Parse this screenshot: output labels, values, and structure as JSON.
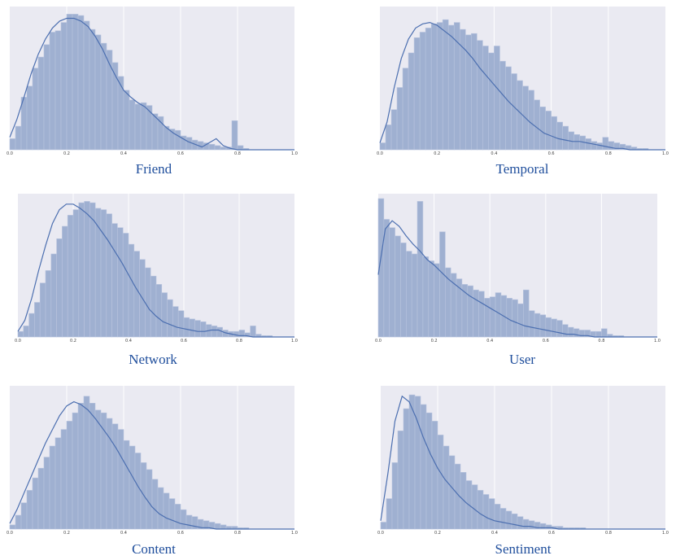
{
  "colors": {
    "plot_bg": "#eaeaf2",
    "grid": "#ffffff",
    "bar_fill": "#9fb0d1",
    "bar_edge": "#b8c4de",
    "kde_line": "#4c6fb0",
    "title": "#1f4e9c"
  },
  "chart_data": [
    {
      "type": "bar",
      "title": "Friend",
      "xlabel": "",
      "ylabel": "",
      "xlim": [
        0.0,
        1.0
      ],
      "x_ticks": [
        "0.0",
        "0.2",
        "0.4",
        "0.6",
        "0.8",
        "1.0"
      ],
      "grid": true,
      "bin_width": 0.02,
      "bin_start": 0.0,
      "values": [
        0.08,
        0.17,
        0.38,
        0.46,
        0.59,
        0.67,
        0.76,
        0.85,
        0.86,
        0.92,
        0.98,
        0.98,
        0.97,
        0.93,
        0.87,
        0.83,
        0.77,
        0.72,
        0.63,
        0.53,
        0.43,
        0.36,
        0.33,
        0.34,
        0.32,
        0.26,
        0.24,
        0.17,
        0.15,
        0.14,
        0.1,
        0.09,
        0.07,
        0.06,
        0.05,
        0.04,
        0.03,
        0.02,
        0.02,
        0.21,
        0.03,
        0.01,
        0.0,
        0.0,
        0.0,
        0.0,
        0.0,
        0.0,
        0.0,
        0.0
      ],
      "kde": [
        0.09,
        0.22,
        0.38,
        0.55,
        0.69,
        0.8,
        0.88,
        0.93,
        0.95,
        0.95,
        0.93,
        0.89,
        0.82,
        0.73,
        0.62,
        0.52,
        0.43,
        0.38,
        0.34,
        0.31,
        0.26,
        0.21,
        0.16,
        0.12,
        0.09,
        0.06,
        0.04,
        0.02,
        0.05,
        0.08,
        0.03,
        0.01,
        0.0,
        0.0,
        0.0,
        0.0,
        0.0,
        0.0,
        0.0,
        0.0,
        0.0
      ],
      "kde_x_step": 0.025
    },
    {
      "type": "bar",
      "title": "Temporal",
      "xlabel": "",
      "ylabel": "",
      "xlim": [
        0.0,
        1.0
      ],
      "x_ticks": [
        "0.0",
        "0.2",
        "0.4",
        "0.6",
        "0.8",
        "1.0"
      ],
      "grid": true,
      "bin_width": 0.02,
      "bin_start": 0.0,
      "values": [
        0.05,
        0.18,
        0.29,
        0.45,
        0.59,
        0.7,
        0.81,
        0.85,
        0.88,
        0.91,
        0.92,
        0.94,
        0.9,
        0.92,
        0.87,
        0.83,
        0.84,
        0.79,
        0.75,
        0.7,
        0.75,
        0.64,
        0.6,
        0.55,
        0.5,
        0.46,
        0.43,
        0.36,
        0.31,
        0.28,
        0.24,
        0.2,
        0.17,
        0.13,
        0.11,
        0.1,
        0.08,
        0.06,
        0.05,
        0.09,
        0.06,
        0.05,
        0.04,
        0.03,
        0.02,
        0.01,
        0.01,
        0.0,
        0.0,
        0.0
      ],
      "kde": [
        0.05,
        0.2,
        0.45,
        0.66,
        0.8,
        0.88,
        0.91,
        0.92,
        0.9,
        0.86,
        0.82,
        0.77,
        0.72,
        0.66,
        0.59,
        0.53,
        0.47,
        0.41,
        0.35,
        0.3,
        0.25,
        0.2,
        0.16,
        0.12,
        0.1,
        0.08,
        0.07,
        0.06,
        0.06,
        0.05,
        0.04,
        0.03,
        0.02,
        0.01,
        0.01,
        0.0,
        0.0,
        0.0,
        0.0,
        0.0,
        0.0
      ],
      "kde_x_step": 0.025
    },
    {
      "type": "bar",
      "title": "Network",
      "xlabel": "",
      "ylabel": "",
      "xlim": [
        0.0,
        1.0
      ],
      "x_ticks": [
        "0.0",
        "0.2",
        "0.4",
        "0.6",
        "0.8",
        "1.0"
      ],
      "grid": true,
      "bin_width": 0.02,
      "bin_start": 0.0,
      "values": [
        0.04,
        0.08,
        0.17,
        0.25,
        0.39,
        0.48,
        0.6,
        0.71,
        0.8,
        0.88,
        0.92,
        0.97,
        0.98,
        0.97,
        0.93,
        0.92,
        0.89,
        0.82,
        0.79,
        0.75,
        0.67,
        0.62,
        0.56,
        0.5,
        0.44,
        0.38,
        0.32,
        0.27,
        0.22,
        0.19,
        0.14,
        0.13,
        0.12,
        0.11,
        0.09,
        0.08,
        0.07,
        0.05,
        0.04,
        0.04,
        0.05,
        0.03,
        0.08,
        0.02,
        0.01,
        0.01,
        0.0,
        0.0,
        0.0,
        0.0
      ],
      "kde": [
        0.04,
        0.12,
        0.28,
        0.48,
        0.66,
        0.82,
        0.92,
        0.96,
        0.96,
        0.93,
        0.89,
        0.84,
        0.77,
        0.7,
        0.62,
        0.54,
        0.45,
        0.36,
        0.28,
        0.2,
        0.15,
        0.11,
        0.09,
        0.07,
        0.06,
        0.05,
        0.04,
        0.04,
        0.05,
        0.05,
        0.03,
        0.02,
        0.01,
        0.01,
        0.0,
        0.0,
        0.0,
        0.0,
        0.0,
        0.0,
        0.0
      ],
      "kde_x_step": 0.025
    },
    {
      "type": "bar",
      "title": "User",
      "xlabel": "",
      "ylabel": "",
      "xlim": [
        0.0,
        1.0
      ],
      "x_ticks": [
        "0.0",
        "0.2",
        "0.4",
        "0.6",
        "0.8",
        "1.0"
      ],
      "grid": true,
      "bin_width": 0.02,
      "bin_start": 0.0,
      "values": [
        1.0,
        0.85,
        0.79,
        0.73,
        0.68,
        0.62,
        0.6,
        0.98,
        0.58,
        0.55,
        0.53,
        0.76,
        0.5,
        0.46,
        0.42,
        0.38,
        0.37,
        0.34,
        0.33,
        0.28,
        0.29,
        0.32,
        0.3,
        0.28,
        0.27,
        0.24,
        0.34,
        0.19,
        0.17,
        0.16,
        0.14,
        0.13,
        0.12,
        0.09,
        0.07,
        0.06,
        0.05,
        0.05,
        0.04,
        0.04,
        0.06,
        0.02,
        0.01,
        0.01,
        0.0,
        0.0,
        0.0,
        0.0,
        0.0,
        0.0
      ],
      "kde": [
        0.45,
        0.78,
        0.84,
        0.8,
        0.73,
        0.67,
        0.62,
        0.56,
        0.52,
        0.47,
        0.42,
        0.38,
        0.34,
        0.3,
        0.27,
        0.24,
        0.21,
        0.18,
        0.15,
        0.12,
        0.1,
        0.08,
        0.07,
        0.06,
        0.05,
        0.04,
        0.03,
        0.02,
        0.02,
        0.01,
        0.01,
        0.0,
        0.0,
        0.0,
        0.0,
        0.0,
        0.0,
        0.0,
        0.0,
        0.0,
        0.0
      ],
      "kde_x_step": 0.025
    },
    {
      "type": "bar",
      "title": "Content",
      "xlabel": "",
      "ylabel": "",
      "xlim": [
        0.0,
        1.0
      ],
      "x_ticks": [
        "0.0",
        "0.2",
        "0.4",
        "0.6",
        "0.8",
        "1.0"
      ],
      "grid": true,
      "bin_width": 0.02,
      "bin_start": 0.0,
      "values": [
        0.03,
        0.1,
        0.19,
        0.28,
        0.37,
        0.44,
        0.52,
        0.6,
        0.66,
        0.72,
        0.78,
        0.84,
        0.91,
        0.96,
        0.91,
        0.86,
        0.84,
        0.8,
        0.76,
        0.72,
        0.64,
        0.6,
        0.55,
        0.48,
        0.43,
        0.36,
        0.3,
        0.26,
        0.22,
        0.18,
        0.14,
        0.1,
        0.09,
        0.07,
        0.06,
        0.05,
        0.04,
        0.03,
        0.02,
        0.02,
        0.01,
        0.01,
        0.0,
        0.0,
        0.0,
        0.0,
        0.0,
        0.0,
        0.0,
        0.0
      ],
      "kde": [
        0.04,
        0.14,
        0.26,
        0.38,
        0.5,
        0.62,
        0.72,
        0.82,
        0.89,
        0.92,
        0.9,
        0.86,
        0.8,
        0.73,
        0.66,
        0.58,
        0.49,
        0.4,
        0.31,
        0.23,
        0.16,
        0.11,
        0.08,
        0.06,
        0.04,
        0.03,
        0.02,
        0.01,
        0.01,
        0.0,
        0.0,
        0.0,
        0.0,
        0.0,
        0.0,
        0.0,
        0.0,
        0.0,
        0.0,
        0.0,
        0.0
      ],
      "kde_x_step": 0.025
    },
    {
      "type": "bar",
      "title": "Sentiment",
      "xlabel": "",
      "ylabel": "",
      "xlim": [
        0.0,
        1.0
      ],
      "x_ticks": [
        "0.0",
        "0.2",
        "0.4",
        "0.6",
        "0.8",
        "1.0"
      ],
      "grid": true,
      "bin_width": 0.02,
      "bin_start": 0.0,
      "values": [
        0.05,
        0.22,
        0.48,
        0.71,
        0.87,
        0.97,
        0.96,
        0.9,
        0.84,
        0.78,
        0.68,
        0.6,
        0.53,
        0.47,
        0.41,
        0.35,
        0.32,
        0.28,
        0.25,
        0.22,
        0.18,
        0.15,
        0.13,
        0.11,
        0.09,
        0.07,
        0.06,
        0.05,
        0.04,
        0.03,
        0.02,
        0.02,
        0.01,
        0.01,
        0.01,
        0.01,
        0.0,
        0.0,
        0.0,
        0.0,
        0.0,
        0.0,
        0.0,
        0.0,
        0.0,
        0.0,
        0.0,
        0.0,
        0.0,
        0.0
      ],
      "kde": [
        0.06,
        0.4,
        0.78,
        0.96,
        0.92,
        0.8,
        0.66,
        0.54,
        0.44,
        0.36,
        0.3,
        0.24,
        0.19,
        0.15,
        0.11,
        0.08,
        0.06,
        0.05,
        0.04,
        0.03,
        0.02,
        0.02,
        0.01,
        0.01,
        0.01,
        0.0,
        0.0,
        0.0,
        0.0,
        0.0,
        0.0,
        0.0,
        0.0,
        0.0,
        0.0,
        0.0,
        0.0,
        0.0,
        0.0,
        0.0,
        0.0
      ],
      "kde_x_step": 0.025
    }
  ]
}
